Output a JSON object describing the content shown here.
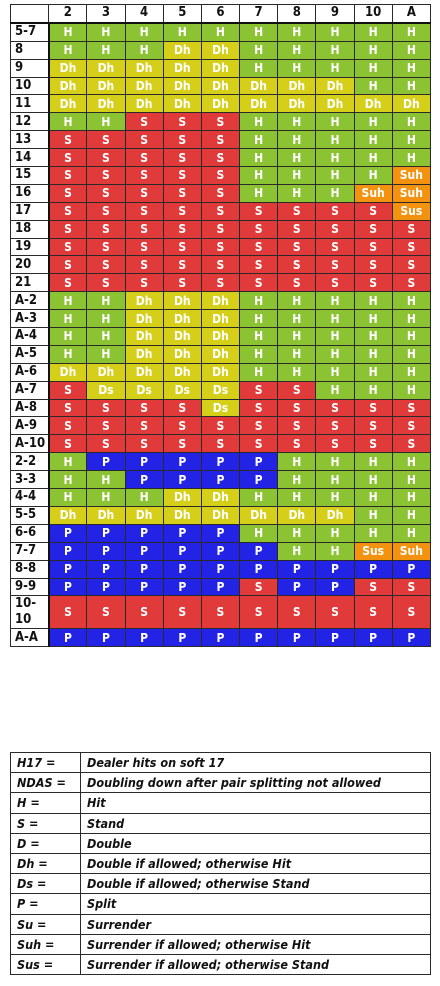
{
  "colors": {
    "H": "#8cc332",
    "S": "#e03a3a",
    "Dh": "#d6cf1a",
    "Ds": "#d6cf1a",
    "P": "#2323e6",
    "Suh": "#f2920f",
    "Sus": "#f2920f"
  },
  "chart_data": {
    "type": "table",
    "columns": [
      "2",
      "3",
      "4",
      "5",
      "6",
      "7",
      "8",
      "9",
      "10",
      "A"
    ],
    "rows": [
      {
        "label": "5-7",
        "cells": [
          "H",
          "H",
          "H",
          "H",
          "H",
          "H",
          "H",
          "H",
          "H",
          "H"
        ]
      },
      {
        "label": "8",
        "cells": [
          "H",
          "H",
          "H",
          "Dh",
          "Dh",
          "H",
          "H",
          "H",
          "H",
          "H"
        ]
      },
      {
        "label": "9",
        "cells": [
          "Dh",
          "Dh",
          "Dh",
          "Dh",
          "Dh",
          "H",
          "H",
          "H",
          "H",
          "H"
        ]
      },
      {
        "label": "10",
        "cells": [
          "Dh",
          "Dh",
          "Dh",
          "Dh",
          "Dh",
          "Dh",
          "Dh",
          "Dh",
          "H",
          "H"
        ]
      },
      {
        "label": "11",
        "cells": [
          "Dh",
          "Dh",
          "Dh",
          "Dh",
          "Dh",
          "Dh",
          "Dh",
          "Dh",
          "Dh",
          "Dh"
        ]
      },
      {
        "label": "12",
        "cells": [
          "H",
          "H",
          "S",
          "S",
          "S",
          "H",
          "H",
          "H",
          "H",
          "H"
        ]
      },
      {
        "label": "13",
        "cells": [
          "S",
          "S",
          "S",
          "S",
          "S",
          "H",
          "H",
          "H",
          "H",
          "H"
        ]
      },
      {
        "label": "14",
        "cells": [
          "S",
          "S",
          "S",
          "S",
          "S",
          "H",
          "H",
          "H",
          "H",
          "H"
        ]
      },
      {
        "label": "15",
        "cells": [
          "S",
          "S",
          "S",
          "S",
          "S",
          "H",
          "H",
          "H",
          "H",
          "Suh"
        ]
      },
      {
        "label": "16",
        "cells": [
          "S",
          "S",
          "S",
          "S",
          "S",
          "H",
          "H",
          "H",
          "Suh",
          "Suh"
        ]
      },
      {
        "label": "17",
        "cells": [
          "S",
          "S",
          "S",
          "S",
          "S",
          "S",
          "S",
          "S",
          "S",
          "Sus"
        ]
      },
      {
        "label": "18",
        "cells": [
          "S",
          "S",
          "S",
          "S",
          "S",
          "S",
          "S",
          "S",
          "S",
          "S"
        ]
      },
      {
        "label": "19",
        "cells": [
          "S",
          "S",
          "S",
          "S",
          "S",
          "S",
          "S",
          "S",
          "S",
          "S"
        ]
      },
      {
        "label": "20",
        "cells": [
          "S",
          "S",
          "S",
          "S",
          "S",
          "S",
          "S",
          "S",
          "S",
          "S"
        ]
      },
      {
        "label": "21",
        "cells": [
          "S",
          "S",
          "S",
          "S",
          "S",
          "S",
          "S",
          "S",
          "S",
          "S"
        ]
      },
      {
        "label": "A-2",
        "cells": [
          "H",
          "H",
          "Dh",
          "Dh",
          "Dh",
          "H",
          "H",
          "H",
          "H",
          "H"
        ]
      },
      {
        "label": "A-3",
        "cells": [
          "H",
          "H",
          "Dh",
          "Dh",
          "Dh",
          "H",
          "H",
          "H",
          "H",
          "H"
        ]
      },
      {
        "label": "A-4",
        "cells": [
          "H",
          "H",
          "Dh",
          "Dh",
          "Dh",
          "H",
          "H",
          "H",
          "H",
          "H"
        ]
      },
      {
        "label": "A-5",
        "cells": [
          "H",
          "H",
          "Dh",
          "Dh",
          "Dh",
          "H",
          "H",
          "H",
          "H",
          "H"
        ]
      },
      {
        "label": "A-6",
        "cells": [
          "Dh",
          "Dh",
          "Dh",
          "Dh",
          "Dh",
          "H",
          "H",
          "H",
          "H",
          "H"
        ]
      },
      {
        "label": "A-7",
        "cells": [
          "S",
          "Ds",
          "Ds",
          "Ds",
          "Ds",
          "S",
          "S",
          "H",
          "H",
          "H"
        ]
      },
      {
        "label": "A-8",
        "cells": [
          "S",
          "S",
          "S",
          "S",
          "Ds",
          "S",
          "S",
          "S",
          "S",
          "S"
        ]
      },
      {
        "label": "A-9",
        "cells": [
          "S",
          "S",
          "S",
          "S",
          "S",
          "S",
          "S",
          "S",
          "S",
          "S"
        ]
      },
      {
        "label": "A-10",
        "cells": [
          "S",
          "S",
          "S",
          "S",
          "S",
          "S",
          "S",
          "S",
          "S",
          "S"
        ]
      },
      {
        "label": "2-2",
        "cells": [
          "H",
          "P",
          "P",
          "P",
          "P",
          "P",
          "H",
          "H",
          "H",
          "H"
        ]
      },
      {
        "label": "3-3",
        "cells": [
          "H",
          "H",
          "P",
          "P",
          "P",
          "P",
          "H",
          "H",
          "H",
          "H"
        ]
      },
      {
        "label": "4-4",
        "cells": [
          "H",
          "H",
          "H",
          "Dh",
          "Dh",
          "H",
          "H",
          "H",
          "H",
          "H"
        ]
      },
      {
        "label": "5-5",
        "cells": [
          "Dh",
          "Dh",
          "Dh",
          "Dh",
          "Dh",
          "Dh",
          "Dh",
          "Dh",
          "H",
          "H"
        ]
      },
      {
        "label": "6-6",
        "cells": [
          "P",
          "P",
          "P",
          "P",
          "P",
          "H",
          "H",
          "H",
          "H",
          "H"
        ]
      },
      {
        "label": "7-7",
        "cells": [
          "P",
          "P",
          "P",
          "P",
          "P",
          "P",
          "H",
          "H",
          "Sus",
          "Suh"
        ]
      },
      {
        "label": "8-8",
        "cells": [
          "P",
          "P",
          "P",
          "P",
          "P",
          "P",
          "P",
          "P",
          "P",
          "P"
        ]
      },
      {
        "label": "9-9",
        "cells": [
          "P",
          "P",
          "P",
          "P",
          "P",
          "S",
          "P",
          "P",
          "S",
          "S"
        ]
      },
      {
        "label": "10-10",
        "cells": [
          "S",
          "S",
          "S",
          "S",
          "S",
          "S",
          "S",
          "S",
          "S",
          "S"
        ]
      },
      {
        "label": "A-A",
        "cells": [
          "P",
          "P",
          "P",
          "P",
          "P",
          "P",
          "P",
          "P",
          "P",
          "P"
        ]
      }
    ]
  },
  "legend": [
    {
      "key": "H17 =",
      "desc": "Dealer hits on soft 17"
    },
    {
      "key": "NDAS =",
      "desc": "Doubling down after pair splitting not allowed"
    },
    {
      "key": "H =",
      "desc": "Hit"
    },
    {
      "key": "S =",
      "desc": "Stand"
    },
    {
      "key": "D =",
      "desc": "Double"
    },
    {
      "key": "Dh =",
      "desc": "Double if allowed; otherwise Hit"
    },
    {
      "key": "Ds =",
      "desc": "Double if allowed; otherwise Stand"
    },
    {
      "key": "P =",
      "desc": "Split"
    },
    {
      "key": "Su =",
      "desc": "Surrender"
    },
    {
      "key": "Suh =",
      "desc": "Surrender if allowed; otherwise Hit"
    },
    {
      "key": "Sus =",
      "desc": "Surrender if allowed; otherwise Stand"
    }
  ]
}
